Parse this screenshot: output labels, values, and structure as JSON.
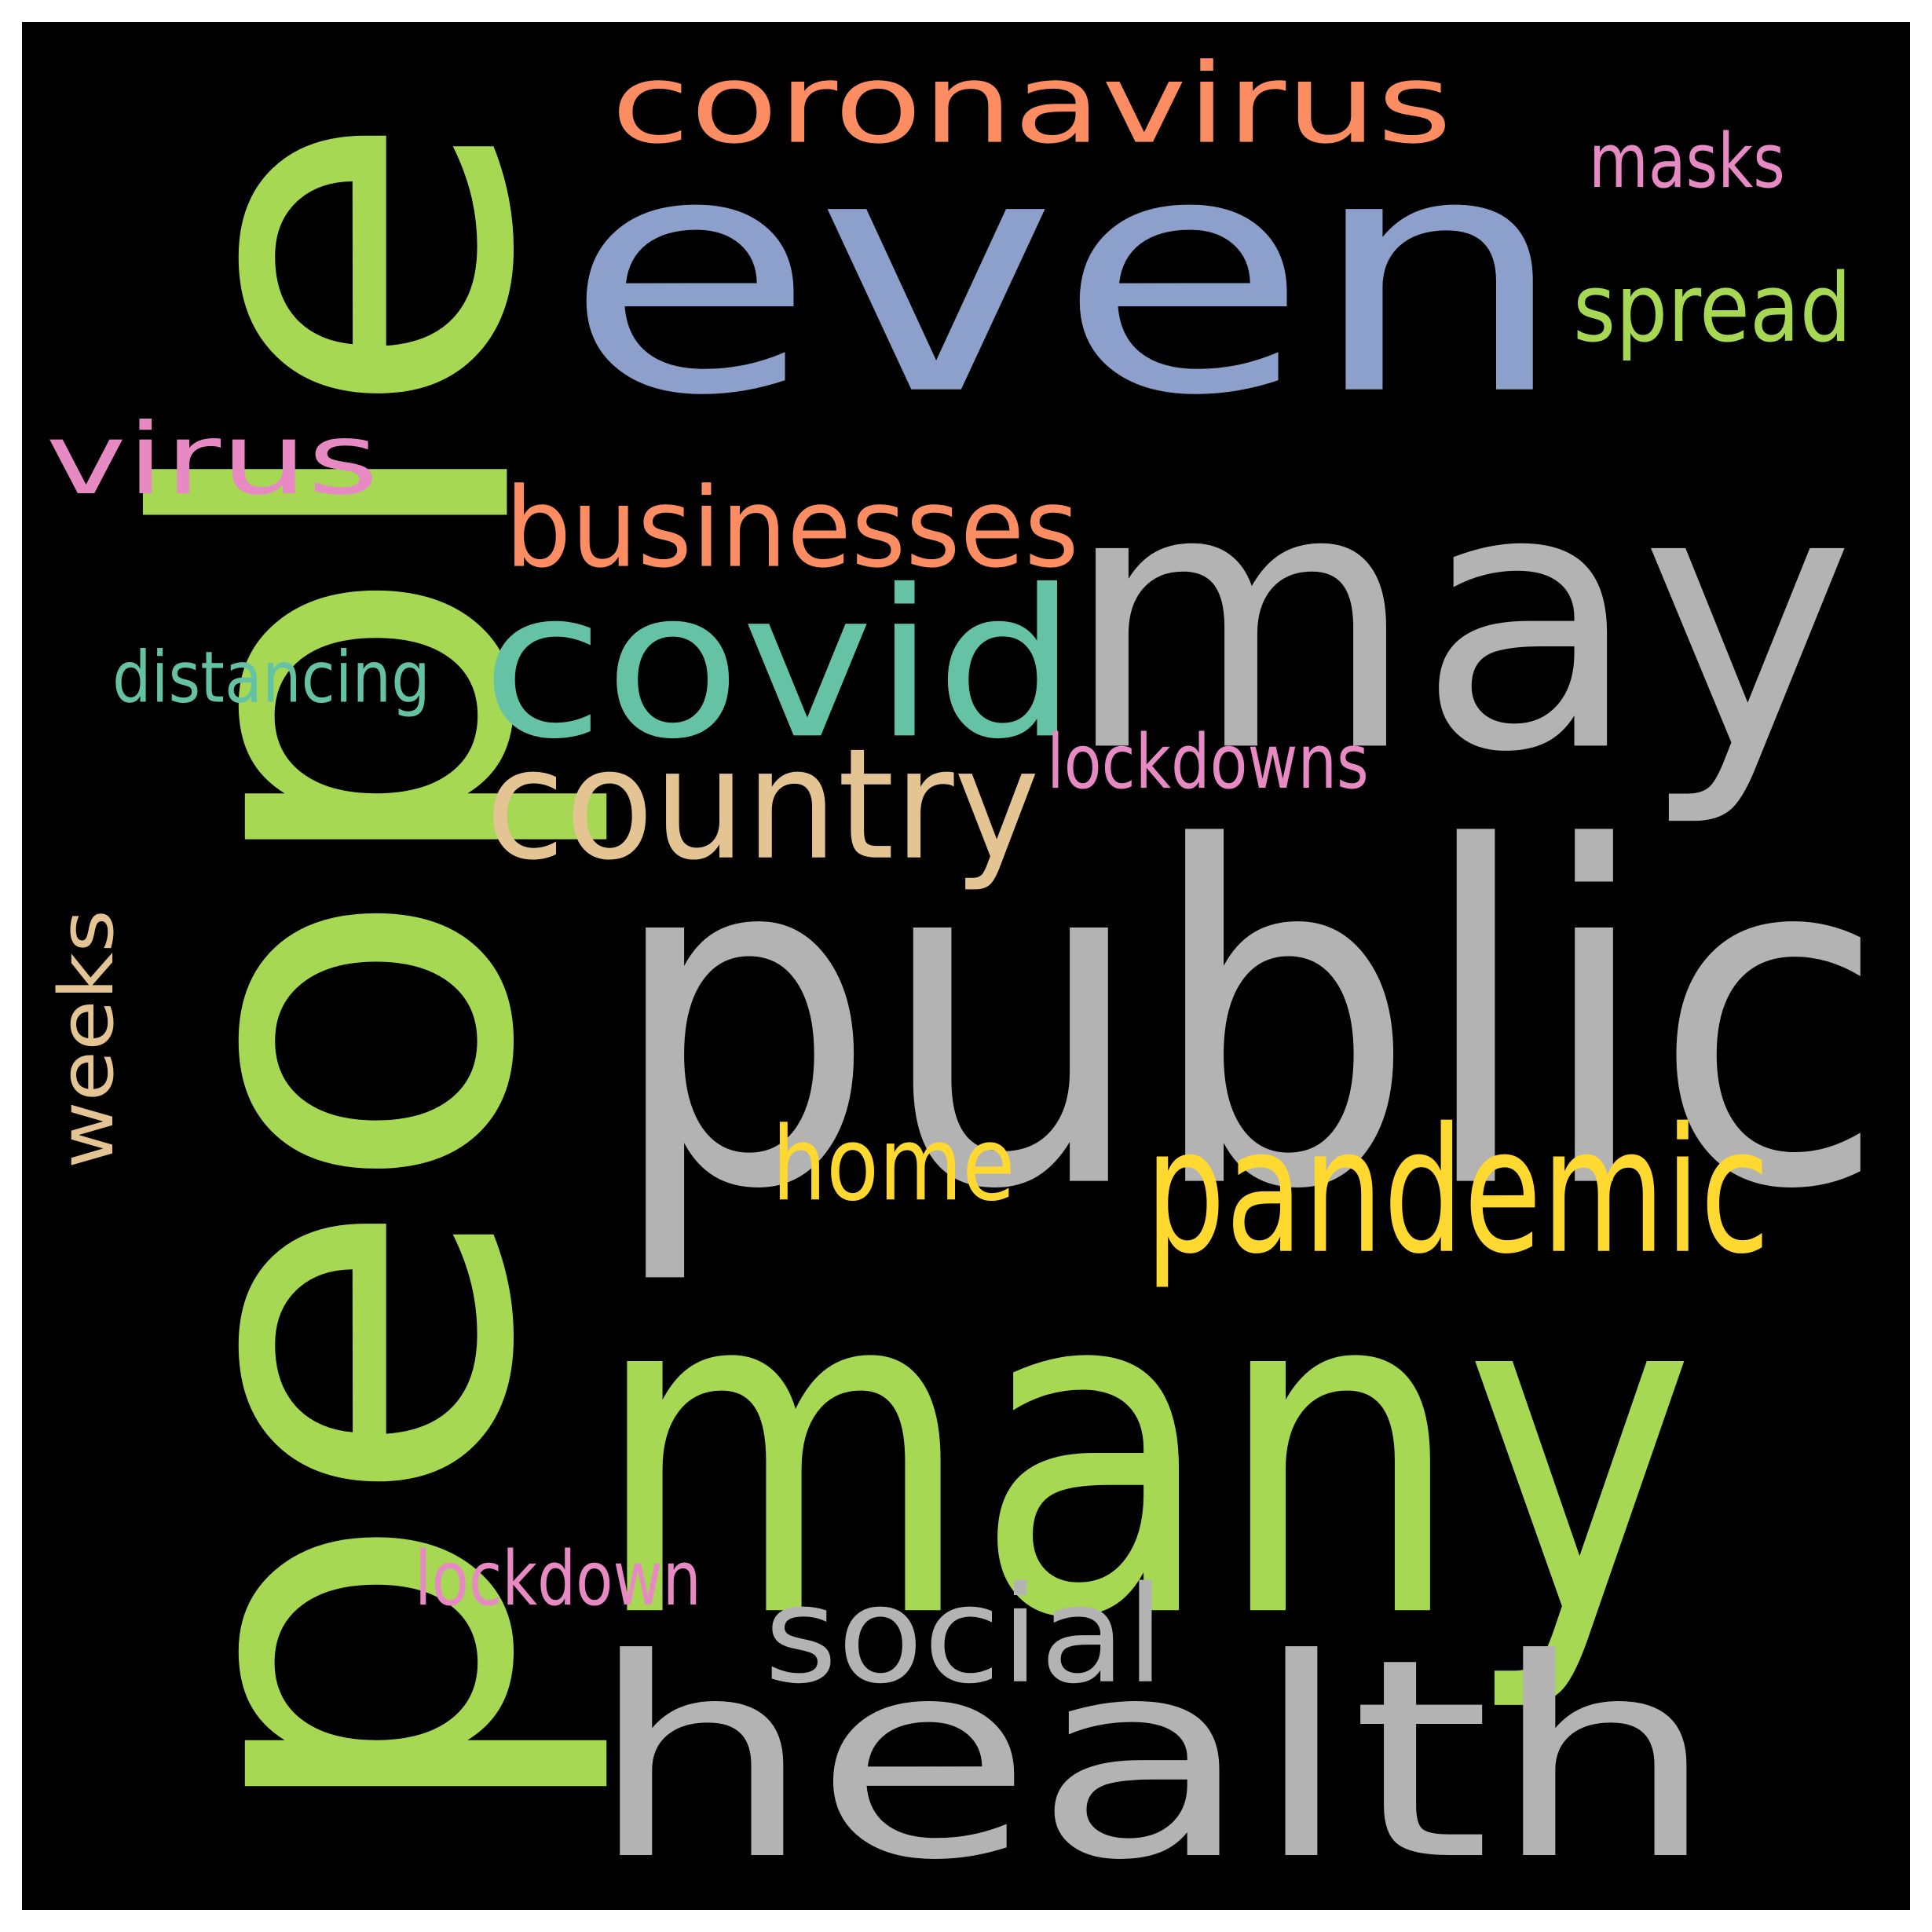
{
  "background_color": "#000000",
  "frame_color": "#ffffff",
  "words": [
    {
      "text": "people",
      "color": "#a6d854"
    },
    {
      "text": "even",
      "color": "#8da0cb"
    },
    {
      "text": "may",
      "color": "#b3b3b3"
    },
    {
      "text": "public",
      "color": "#b3b3b3"
    },
    {
      "text": "many",
      "color": "#a6d854"
    },
    {
      "text": "health",
      "color": "#b3b3b3"
    },
    {
      "text": "coronavirus",
      "color": "#fc8d62"
    },
    {
      "text": "covid",
      "color": "#66c2a5"
    },
    {
      "text": "pandemic",
      "color": "#ffd92f"
    },
    {
      "text": "country",
      "color": "#e5c494"
    },
    {
      "text": "businesses",
      "color": "#fc8d62"
    },
    {
      "text": "virus",
      "color": "#e78ac3"
    },
    {
      "text": "social",
      "color": "#b3b3b3"
    },
    {
      "text": "home",
      "color": "#ffd92f"
    },
    {
      "text": "spread",
      "color": "#a6d854"
    },
    {
      "text": "weeks",
      "color": "#e5c494"
    },
    {
      "text": "masks",
      "color": "#e78ac3"
    },
    {
      "text": "distancing",
      "color": "#66c2a5"
    },
    {
      "text": "lockdowns",
      "color": "#e78ac3"
    },
    {
      "text": "lockdown",
      "color": "#e78ac3"
    }
  ]
}
